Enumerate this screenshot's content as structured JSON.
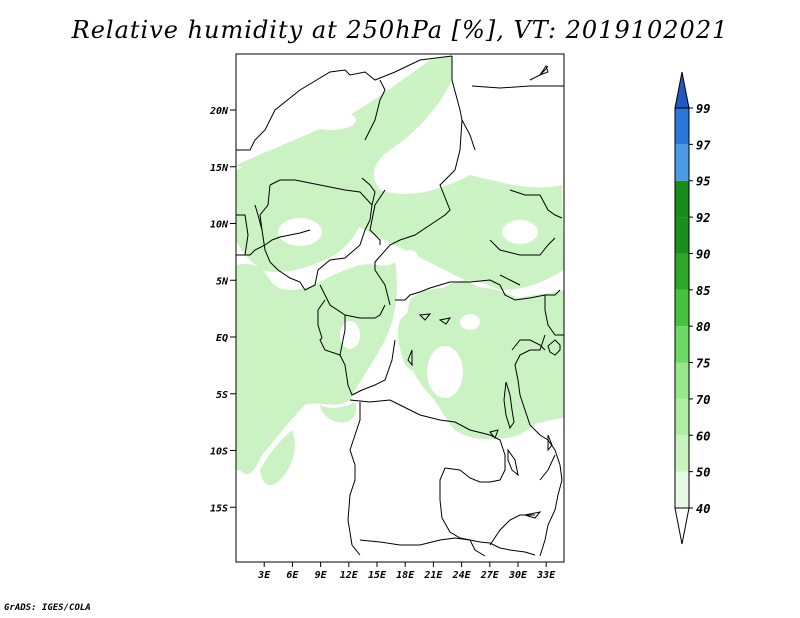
{
  "title": "Relative humidity at 250hPa [%], VT: 2019102021",
  "credit": "GrADS: IGES/COLA",
  "map": {
    "lat_ticks": [
      {
        "label": "20N",
        "value": 20
      },
      {
        "label": "15N",
        "value": 15
      },
      {
        "label": "10N",
        "value": 10
      },
      {
        "label": "5N",
        "value": 5
      },
      {
        "label": "EQ",
        "value": 0
      },
      {
        "label": "5S",
        "value": -5
      },
      {
        "label": "10S",
        "value": -10
      },
      {
        "label": "15S",
        "value": -15
      }
    ],
    "lon_ticks": [
      {
        "label": "3E",
        "value": 3
      },
      {
        "label": "6E",
        "value": 6
      },
      {
        "label": "9E",
        "value": 9
      },
      {
        "label": "12E",
        "value": 12
      },
      {
        "label": "15E",
        "value": 15
      },
      {
        "label": "18E",
        "value": 18
      },
      {
        "label": "21E",
        "value": 21
      },
      {
        "label": "24E",
        "value": 24
      },
      {
        "label": "27E",
        "value": 27
      },
      {
        "label": "30E",
        "value": 30
      },
      {
        "label": "33E",
        "value": 33
      }
    ]
  },
  "colorbar": {
    "levels": [
      {
        "label": "40",
        "color": "#ffffff"
      },
      {
        "label": "50",
        "color": "#e6f9e3"
      },
      {
        "label": "60",
        "color": "#c8f2c0"
      },
      {
        "label": "70",
        "color": "#b0eea5"
      },
      {
        "label": "75",
        "color": "#96e88a"
      },
      {
        "label": "80",
        "color": "#6cd963"
      },
      {
        "label": "85",
        "color": "#48c23e"
      },
      {
        "label": "90",
        "color": "#2ea62a"
      },
      {
        "label": "92",
        "color": "#1b8e1b"
      },
      {
        "label": "95",
        "color": "#188c18"
      },
      {
        "label": "97",
        "color": "#4a9ae6"
      },
      {
        "label": "99",
        "color": "#2a78d8"
      }
    ],
    "top_color": "#2259c0",
    "bottom_color": "#ffffff"
  },
  "shading_color": "#c8f2c0"
}
